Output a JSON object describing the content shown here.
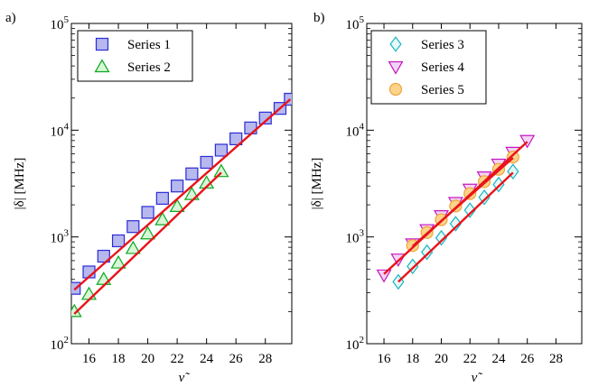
{
  "chart_data": [
    {
      "type": "scatter",
      "panel_label": "a)",
      "xlabel": "ν̃",
      "ylabel": "|δ| [MHz]",
      "xlim": [
        14.8,
        29.8
      ],
      "ylim": [
        100,
        100000
      ],
      "yscale": "log",
      "xticks": [
        16,
        18,
        20,
        22,
        24,
        26,
        28
      ],
      "xtick_labels": [
        "16",
        "18",
        "20",
        "22",
        "24",
        "26",
        "28"
      ],
      "yticks": [
        100,
        1000,
        10000,
        100000
      ],
      "ytick_labels": [
        {
          "base": "10",
          "exp": "2"
        },
        {
          "base": "10",
          "exp": "3"
        },
        {
          "base": "10",
          "exp": "4"
        },
        {
          "base": "10",
          "exp": "5"
        }
      ],
      "grid": false,
      "legend_position": "top-left",
      "series": [
        {
          "name": "Series 1",
          "marker": "square",
          "fill": "#b6b8ee",
          "stroke": "#2b2bd6",
          "x": [
            15,
            16,
            17,
            18,
            19,
            20,
            21,
            22,
            23,
            24,
            25,
            26,
            27,
            28,
            29,
            29.7
          ],
          "y": [
            330,
            470,
            660,
            920,
            1250,
            1700,
            2300,
            3000,
            3900,
            5000,
            6500,
            8300,
            10500,
            13000,
            16000,
            19500
          ],
          "fit": {
            "x": [
              15,
              29.7
            ],
            "y": [
              320,
              19500
            ],
            "color": "#e8141a"
          }
        },
        {
          "name": "Series 2",
          "marker": "triangle-up",
          "fill": "#d8f6d8",
          "stroke": "#0aa81e",
          "x": [
            15,
            16,
            17,
            18,
            19,
            20,
            21,
            22,
            23,
            24,
            25
          ],
          "y": [
            200,
            290,
            400,
            570,
            780,
            1070,
            1450,
            1930,
            2500,
            3200,
            4100
          ],
          "fit": {
            "x": [
              15,
              25
            ],
            "y": [
              190,
              4000
            ],
            "color": "#e8141a"
          }
        }
      ]
    },
    {
      "type": "scatter",
      "panel_label": "b)",
      "xlabel": "ν̃",
      "ylabel": "|δ| [MHz]",
      "xlim": [
        14.8,
        29.8
      ],
      "ylim": [
        100,
        100000
      ],
      "yscale": "log",
      "xticks": [
        16,
        18,
        20,
        22,
        24,
        26,
        28
      ],
      "xtick_labels": [
        "16",
        "18",
        "20",
        "22",
        "24",
        "26",
        "28"
      ],
      "yticks": [
        100,
        1000,
        10000,
        100000
      ],
      "ytick_labels": [
        {
          "base": "10",
          "exp": "2"
        },
        {
          "base": "10",
          "exp": "3"
        },
        {
          "base": "10",
          "exp": "4"
        },
        {
          "base": "10",
          "exp": "5"
        }
      ],
      "grid": false,
      "legend_position": "top-left",
      "series": [
        {
          "name": "Series 3",
          "marker": "diamond",
          "fill": "#e6f8f8",
          "stroke": "#18b4c0",
          "x": [
            17,
            18,
            19,
            20,
            21,
            22,
            23,
            24,
            25
          ],
          "y": [
            380,
            530,
            720,
            980,
            1330,
            1780,
            2350,
            3100,
            4100
          ],
          "fit": {
            "x": [
              17,
              25
            ],
            "y": [
              380,
              4000
            ],
            "color": "#e8141a"
          }
        },
        {
          "name": "Series 4",
          "marker": "triangle-down",
          "fill": "#f4d4f4",
          "stroke": "#c418c0",
          "x": [
            16,
            17,
            18,
            19,
            20,
            21,
            22,
            23,
            24,
            25,
            26
          ],
          "y": [
            440,
            620,
            860,
            1170,
            1580,
            2100,
            2800,
            3650,
            4800,
            6200,
            8000
          ],
          "fit": {
            "x": [
              16,
              26
            ],
            "y": [
              450,
              7800
            ],
            "color": "#e8141a"
          }
        },
        {
          "name": "Series 5",
          "marker": "circle",
          "fill": "#fbd38a",
          "stroke": "#eda63a",
          "x": [
            18,
            19,
            20,
            21,
            22,
            23,
            24,
            25
          ],
          "y": [
            830,
            1100,
            1450,
            1950,
            2550,
            3300,
            4300,
            5600
          ],
          "fit": {
            "x": [
              18,
              25
            ],
            "y": [
              820,
              5500
            ],
            "color": "#e8141a"
          }
        }
      ]
    }
  ]
}
